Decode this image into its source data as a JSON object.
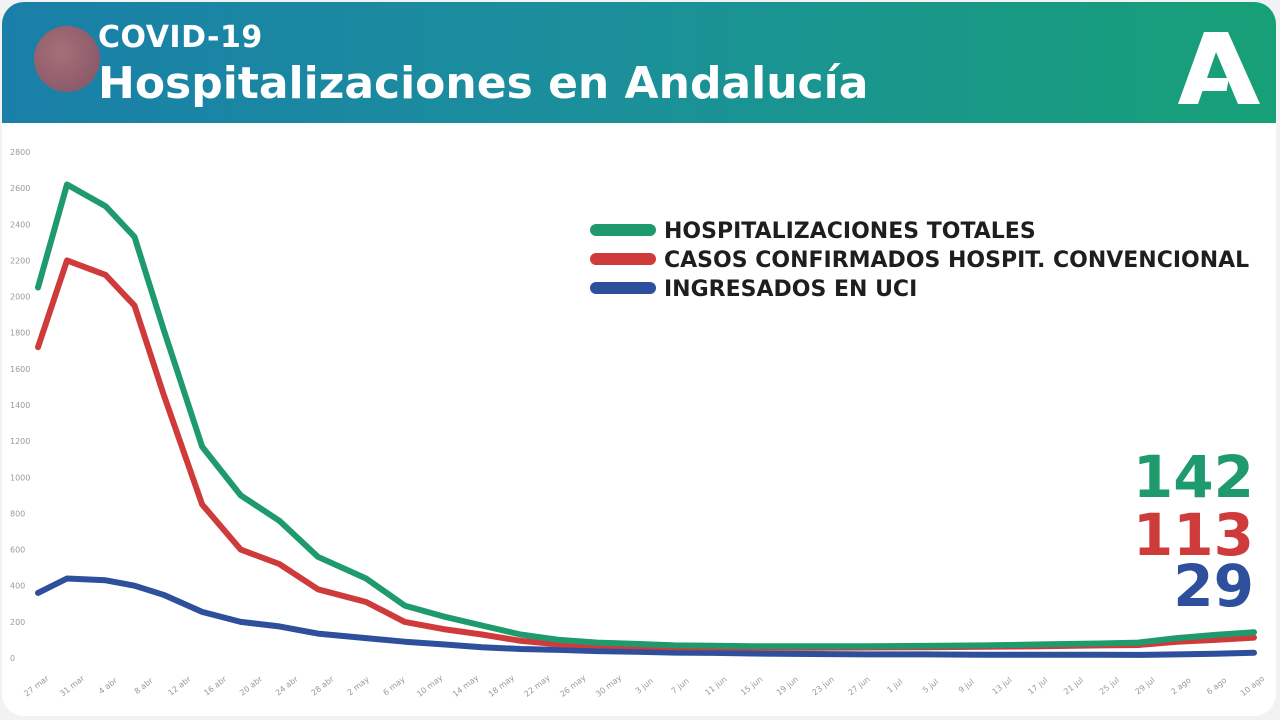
{
  "header": {
    "kicker": "COVID-19",
    "title": "Hospitalizaciones en Andalucía"
  },
  "colors": {
    "header_left": "#1a7fa8",
    "header_right": "#17a077",
    "total": "#1f9a6c",
    "convencional": "#cf3b3b",
    "uci": "#2e4f9c"
  },
  "chart_data": {
    "type": "line",
    "title": "",
    "xlabel": "",
    "ylabel": "",
    "ylim": [
      0,
      2800
    ],
    "y_ticks": [
      "0",
      "200",
      "400",
      "600",
      "800",
      "1000",
      "1200",
      "1400",
      "1600",
      "1800",
      "2000",
      "2200",
      "2400",
      "2600",
      "2800"
    ],
    "x_ticks": [
      "27 mar",
      "31 mar",
      "4 abr",
      "8 abr",
      "12 abr",
      "16 abr",
      "20 abr",
      "24 abr",
      "28 abr",
      "2 may",
      "6 may",
      "10 may",
      "14 may",
      "18 may",
      "22 may",
      "26 may",
      "30 may",
      "3 jun",
      "7 jun",
      "11 jun",
      "15 jun",
      "19 jun",
      "23 jun",
      "27 jun",
      "1 jul",
      "5 jul",
      "9 jul",
      "13 jul",
      "17 jul",
      "21 jul",
      "25 jul",
      "29 jul",
      "2 ago",
      "6 ago",
      "10 ago"
    ],
    "grid": false,
    "legend_position": "top-right",
    "series": [
      {
        "name": "HOSPITALIZACIONES TOTALES",
        "color": "#1f9a6c",
        "points": [
          [
            0,
            2050
          ],
          [
            3,
            2620
          ],
          [
            7,
            2500
          ],
          [
            10,
            2330
          ],
          [
            13,
            1820
          ],
          [
            17,
            1170
          ],
          [
            21,
            900
          ],
          [
            25,
            760
          ],
          [
            29,
            560
          ],
          [
            34,
            440
          ],
          [
            38,
            290
          ],
          [
            42,
            230
          ],
          [
            46,
            180
          ],
          [
            50,
            130
          ],
          [
            54,
            100
          ],
          [
            58,
            85
          ],
          [
            62,
            78
          ],
          [
            66,
            70
          ],
          [
            70,
            68
          ],
          [
            74,
            65
          ],
          [
            80,
            65
          ],
          [
            86,
            65
          ],
          [
            92,
            67
          ],
          [
            98,
            70
          ],
          [
            104,
            75
          ],
          [
            110,
            80
          ],
          [
            114,
            85
          ],
          [
            118,
            110
          ],
          [
            122,
            128
          ],
          [
            126,
            142
          ]
        ]
      },
      {
        "name": "CASOS CONFIRMADOS HOSPIT. CONVENCIONAL",
        "color": "#cf3b3b",
        "points": [
          [
            0,
            1720
          ],
          [
            3,
            2200
          ],
          [
            7,
            2120
          ],
          [
            10,
            1950
          ],
          [
            13,
            1460
          ],
          [
            17,
            850
          ],
          [
            21,
            600
          ],
          [
            25,
            520
          ],
          [
            29,
            380
          ],
          [
            34,
            310
          ],
          [
            38,
            200
          ],
          [
            42,
            160
          ],
          [
            46,
            130
          ],
          [
            50,
            95
          ],
          [
            54,
            75
          ],
          [
            58,
            70
          ],
          [
            62,
            65
          ],
          [
            66,
            60
          ],
          [
            70,
            58
          ],
          [
            74,
            57
          ],
          [
            80,
            57
          ],
          [
            86,
            58
          ],
          [
            92,
            60
          ],
          [
            98,
            62
          ],
          [
            104,
            65
          ],
          [
            110,
            70
          ],
          [
            114,
            72
          ],
          [
            118,
            90
          ],
          [
            122,
            100
          ],
          [
            126,
            113
          ]
        ]
      },
      {
        "name": "INGRESADOS EN UCI",
        "color": "#2e4f9c",
        "points": [
          [
            0,
            360
          ],
          [
            3,
            440
          ],
          [
            7,
            430
          ],
          [
            10,
            400
          ],
          [
            13,
            350
          ],
          [
            17,
            255
          ],
          [
            21,
            200
          ],
          [
            25,
            175
          ],
          [
            29,
            135
          ],
          [
            34,
            110
          ],
          [
            38,
            90
          ],
          [
            42,
            75
          ],
          [
            46,
            60
          ],
          [
            50,
            50
          ],
          [
            54,
            45
          ],
          [
            58,
            38
          ],
          [
            62,
            35
          ],
          [
            66,
            30
          ],
          [
            70,
            28
          ],
          [
            74,
            25
          ],
          [
            80,
            22
          ],
          [
            86,
            20
          ],
          [
            92,
            20
          ],
          [
            98,
            18
          ],
          [
            104,
            18
          ],
          [
            110,
            18
          ],
          [
            114,
            17
          ],
          [
            118,
            20
          ],
          [
            122,
            24
          ],
          [
            126,
            29
          ]
        ]
      }
    ],
    "latest_values": [
      {
        "label": "142",
        "color": "#1f9a6c"
      },
      {
        "label": "113",
        "color": "#cf3b3b"
      },
      {
        "label": "29",
        "color": "#2e4f9c"
      }
    ]
  }
}
